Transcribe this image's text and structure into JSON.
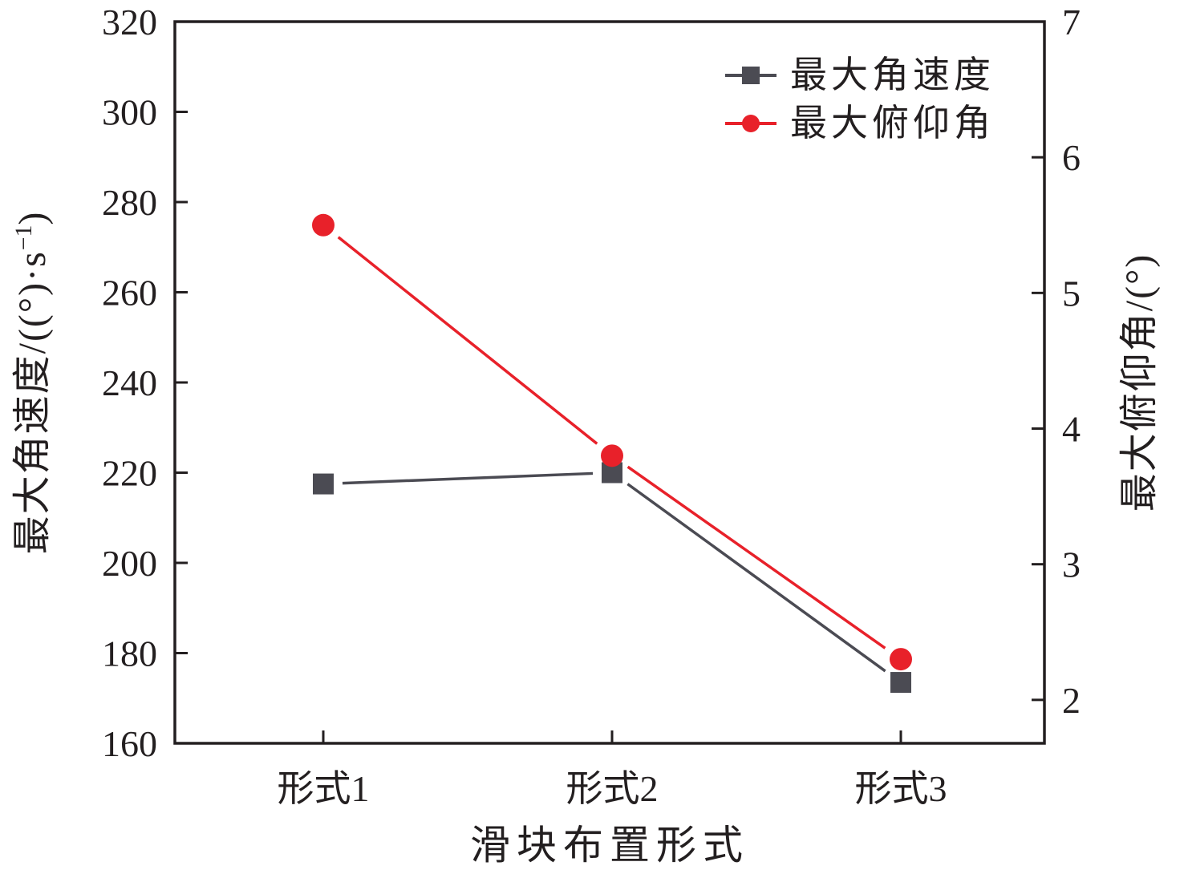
{
  "figure": {
    "background": "#ffffff",
    "ink_color": "#231f20"
  },
  "chart_data": {
    "type": "line",
    "title": "",
    "xlabel": "滑块布置形式",
    "categories": [
      "形式1",
      "形式2",
      "形式3"
    ],
    "series": [
      {
        "name": "最大角速度",
        "axis": "left",
        "marker": "square",
        "color": "#4b4b53",
        "values": [
          217.5,
          220,
          173.5
        ]
      },
      {
        "name": "最大俯仰角",
        "axis": "right",
        "marker": "circle",
        "color": "#e8212a",
        "values": [
          5.5,
          3.8,
          2.3
        ]
      }
    ],
    "left_axis": {
      "label": "最大角速度/((°)·s⁻¹)",
      "label_prefix": "最大角速度/((°)·s",
      "label_sup": "−1",
      "label_suffix": ")",
      "min": 160,
      "max": 320,
      "ticks": [
        160,
        180,
        200,
        220,
        240,
        260,
        280,
        300,
        320
      ]
    },
    "right_axis": {
      "label": "最大俯仰角/(°)",
      "min": 1.68,
      "max": 7,
      "ticks": [
        2,
        3,
        4,
        5,
        6,
        7
      ]
    },
    "legend": {
      "position": "top-right",
      "items": [
        {
          "label": "最大角速度",
          "marker": "square",
          "color": "#4b4b53"
        },
        {
          "label": "最大俯仰角",
          "marker": "circle",
          "color": "#e8212a"
        }
      ]
    },
    "grid": false
  }
}
